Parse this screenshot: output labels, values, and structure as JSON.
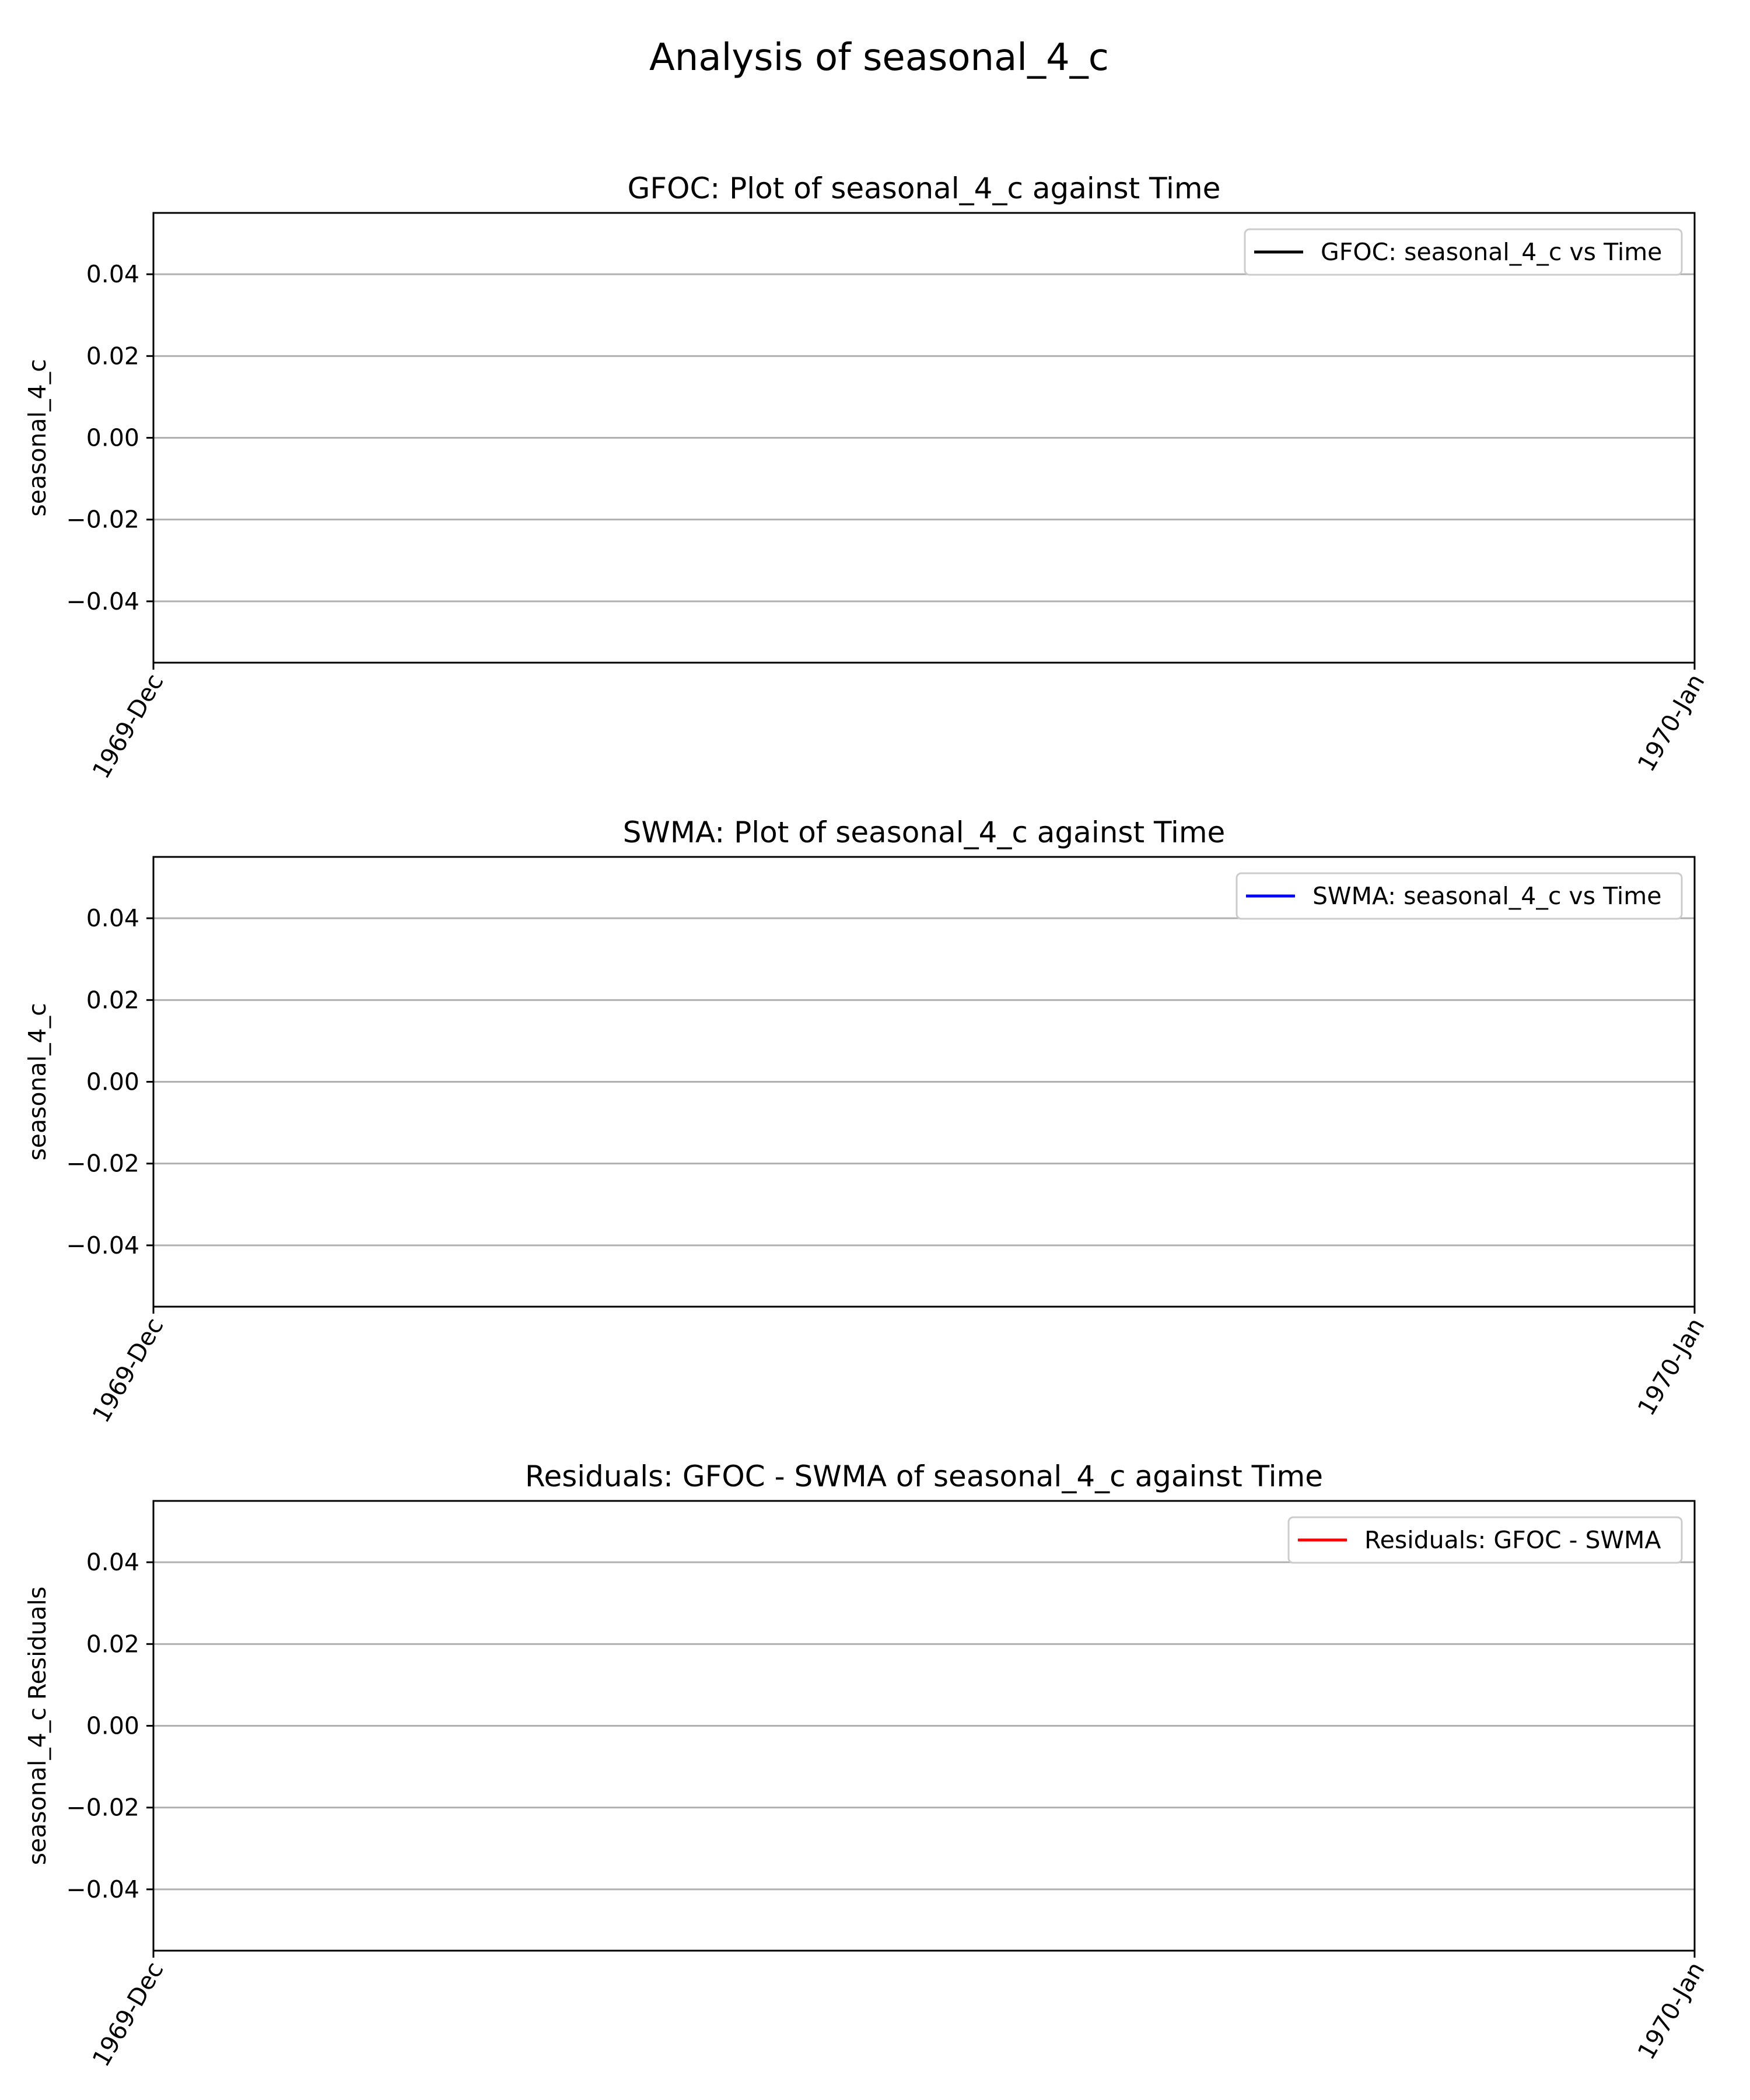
{
  "suptitle": "Analysis of seasonal_4_c",
  "chart_data": [
    {
      "type": "line",
      "title": "GFOC: Plot of seasonal_4_c against Time",
      "xlabel": "",
      "ylabel": "seasonal_4_c",
      "x_ticks": [
        "1969-Dec",
        "1970-Jan"
      ],
      "y_ticks": [
        0.04,
        0.02,
        0.0,
        -0.02,
        -0.04
      ],
      "y_tick_labels": [
        "0.04",
        "0.02",
        "0.00",
        "−0.02",
        "−0.04"
      ],
      "ylim": [
        -0.055,
        0.055
      ],
      "grid": "horizontal",
      "legend_position": "top-right",
      "series": [
        {
          "name": "GFOC: seasonal_4_c vs Time",
          "color": "#000000",
          "values": []
        }
      ]
    },
    {
      "type": "line",
      "title": "SWMA: Plot of seasonal_4_c against Time",
      "xlabel": "",
      "ylabel": "seasonal_4_c",
      "x_ticks": [
        "1969-Dec",
        "1970-Jan"
      ],
      "y_ticks": [
        0.04,
        0.02,
        0.0,
        -0.02,
        -0.04
      ],
      "y_tick_labels": [
        "0.04",
        "0.02",
        "0.00",
        "−0.02",
        "−0.04"
      ],
      "ylim": [
        -0.055,
        0.055
      ],
      "grid": "horizontal",
      "legend_position": "top-right",
      "series": [
        {
          "name": "SWMA: seasonal_4_c vs Time",
          "color": "#0000ff",
          "values": []
        }
      ]
    },
    {
      "type": "line",
      "title": "Residuals: GFOC - SWMA of seasonal_4_c against Time",
      "xlabel": "",
      "ylabel": "seasonal_4_c Residuals",
      "x_ticks": [
        "1969-Dec",
        "1970-Jan"
      ],
      "y_ticks": [
        0.04,
        0.02,
        0.0,
        -0.02,
        -0.04
      ],
      "y_tick_labels": [
        "0.04",
        "0.02",
        "0.00",
        "−0.02",
        "−0.04"
      ],
      "ylim": [
        -0.055,
        0.055
      ],
      "grid": "horizontal",
      "legend_position": "top-right",
      "series": [
        {
          "name": "Residuals: GFOC - SWMA",
          "color": "#ff0000",
          "values": []
        }
      ]
    }
  ]
}
